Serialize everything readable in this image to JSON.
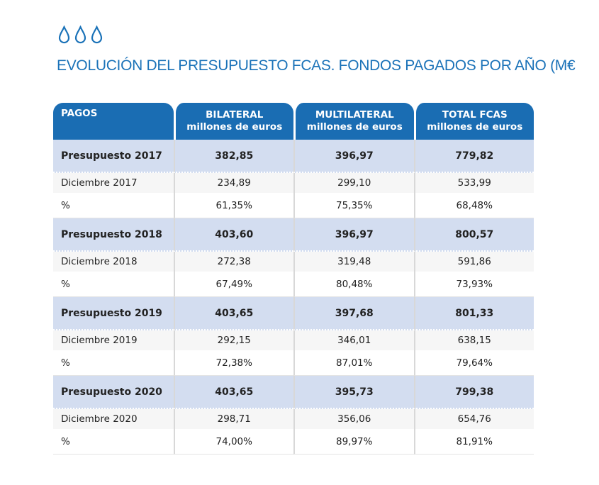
{
  "icons": [
    "water-drop-icon",
    "water-drop-icon",
    "water-drop-icon"
  ],
  "title": "EVOLUCIÓN DEL PRESUPUESTO FCAS. FONDOS PAGADOS POR AÑO (M€",
  "colors": {
    "accent": "#1a6db3",
    "highlight": "#d3ddf0"
  },
  "headers": [
    {
      "l1": "PAGOS",
      "l2": ""
    },
    {
      "l1": "BILATERAL",
      "l2": "millones de euros"
    },
    {
      "l1": "MULTILATERAL",
      "l2": "millones de euros"
    },
    {
      "l1": "TOTAL FCAS",
      "l2": "millones de euros"
    }
  ],
  "rows": [
    {
      "type": "budget",
      "cells": [
        "Presupuesto 2017",
        "382,85",
        "396,97",
        "779,82"
      ]
    },
    {
      "type": "dec",
      "cells": [
        "Diciembre 2017",
        "234,89",
        "299,10",
        "533,99"
      ]
    },
    {
      "type": "pct",
      "cells": [
        "%",
        "61,35%",
        "75,35%",
        "68,48%"
      ]
    },
    {
      "type": "budget",
      "cells": [
        "Presupuesto 2018",
        "403,60",
        "396,97",
        "800,57"
      ]
    },
    {
      "type": "dec",
      "cells": [
        "Diciembre 2018",
        "272,38",
        "319,48",
        "591,86"
      ]
    },
    {
      "type": "pct",
      "cells": [
        "%",
        "67,49%",
        "80,48%",
        "73,93%"
      ]
    },
    {
      "type": "budget",
      "cells": [
        "Presupuesto 2019",
        "403,65",
        "397,68",
        "801,33"
      ]
    },
    {
      "type": "dec",
      "cells": [
        "Diciembre 2019",
        "292,15",
        "346,01",
        "638,15"
      ]
    },
    {
      "type": "pct",
      "cells": [
        "%",
        "72,38%",
        "87,01%",
        "79,64%"
      ]
    },
    {
      "type": "budget",
      "cells": [
        "Presupuesto 2020",
        "403,65",
        "395,73",
        "799,38"
      ]
    },
    {
      "type": "dec",
      "cells": [
        "Diciembre 2020",
        "298,71",
        "356,06",
        "654,76"
      ]
    },
    {
      "type": "pct",
      "cells": [
        "%",
        "74,00%",
        "89,97%",
        "81,91%"
      ]
    }
  ]
}
